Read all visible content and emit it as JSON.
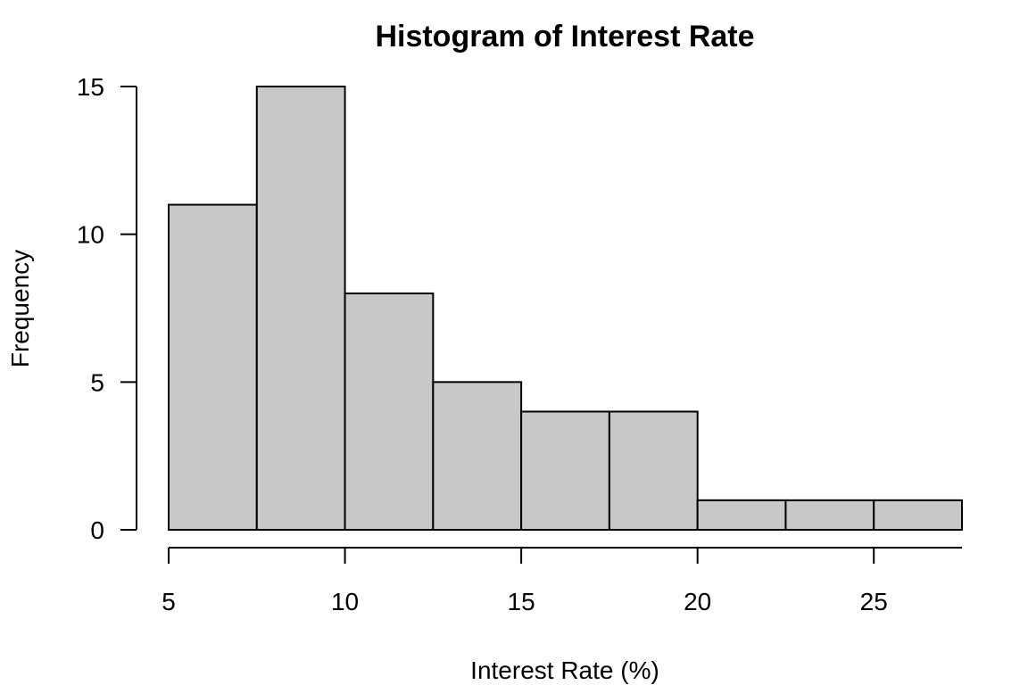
{
  "chart_data": {
    "type": "bar",
    "title": "Histogram of Interest Rate",
    "xlabel": "Interest Rate (%)",
    "ylabel": "Frequency",
    "bins": [
      {
        "start": 5,
        "end": 7.5,
        "count": 11
      },
      {
        "start": 7.5,
        "end": 10,
        "count": 15
      },
      {
        "start": 10,
        "end": 12.5,
        "count": 8
      },
      {
        "start": 12.5,
        "end": 15,
        "count": 5
      },
      {
        "start": 15,
        "end": 17.5,
        "count": 4
      },
      {
        "start": 17.5,
        "end": 20,
        "count": 4
      },
      {
        "start": 20,
        "end": 22.5,
        "count": 1
      },
      {
        "start": 22.5,
        "end": 25,
        "count": 1
      },
      {
        "start": 25,
        "end": 27.5,
        "count": 1
      }
    ],
    "xlim": [
      5,
      27.5
    ],
    "ylim": [
      0,
      15
    ],
    "x_ticks": [
      5,
      10,
      15,
      20,
      25
    ],
    "y_ticks": [
      0,
      5,
      10,
      15
    ],
    "bar_color": "#c8c8c8",
    "grid": false
  }
}
